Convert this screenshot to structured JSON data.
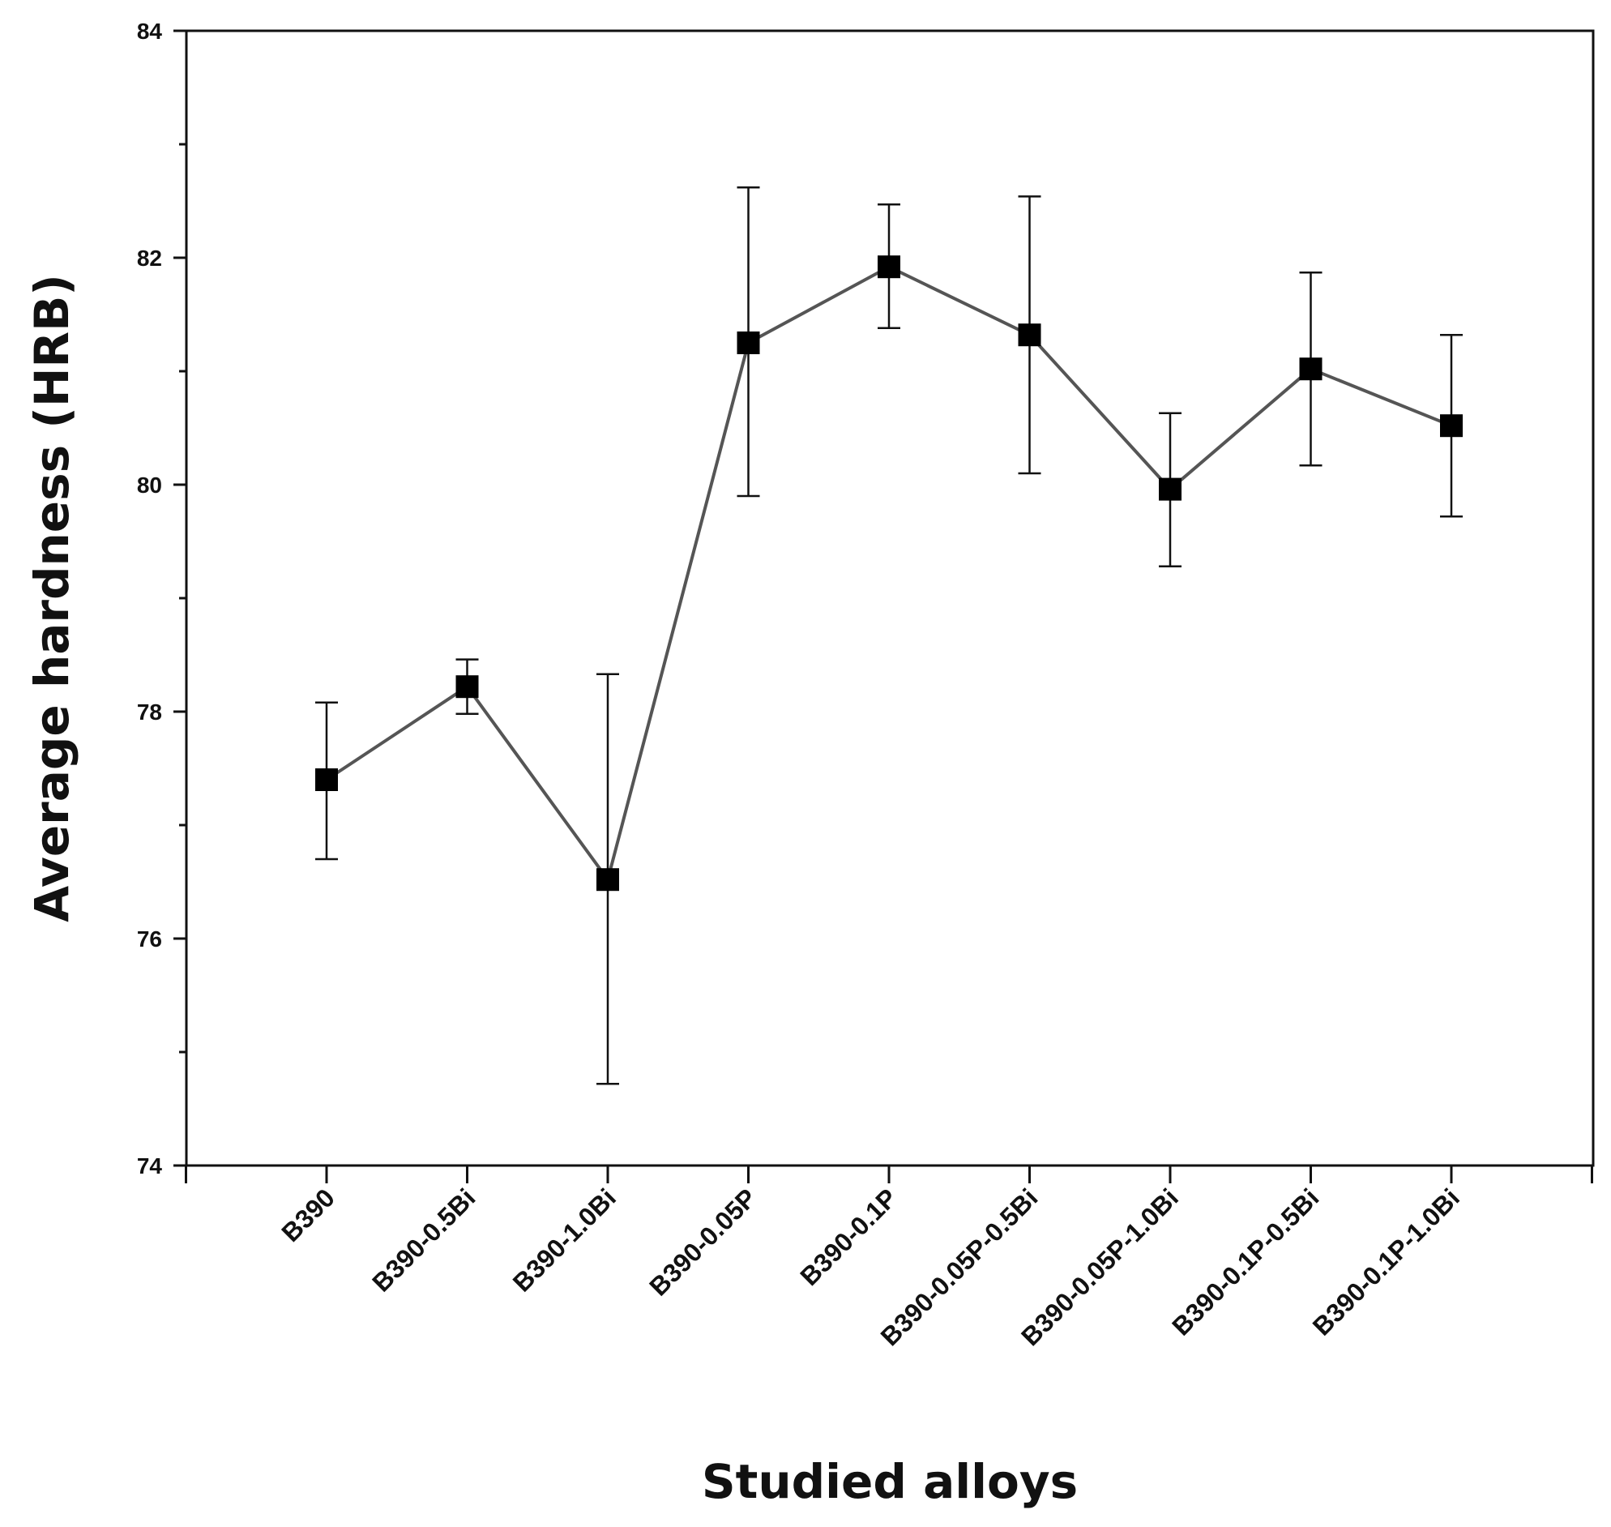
{
  "chart_data": {
    "type": "line",
    "title": "",
    "xlabel": "Studied alloys",
    "ylabel": "Average hardness  (HRB)",
    "ylim": [
      74,
      84
    ],
    "yticks": [
      74,
      76,
      78,
      80,
      82,
      84
    ],
    "grid": false,
    "categories": [
      "B390",
      "B390-0.5Bi",
      "B390-1.0Bi",
      "B390-0.05P",
      "B390-0.1P",
      "B390-0.05P-0.5Bi",
      "B390-0.05P-1.0Bi",
      "B390-0.1P-0.5Bi",
      "B390-0.1P-1.0Bi"
    ],
    "series": [
      {
        "name": "Average hardness",
        "values": [
          77.4,
          78.22,
          76.52,
          81.25,
          81.92,
          81.32,
          79.96,
          81.02,
          80.52
        ],
        "error_low": [
          76.7,
          77.98,
          74.72,
          79.9,
          81.38,
          80.1,
          79.28,
          80.17,
          79.72
        ],
        "error_high": [
          78.08,
          78.46,
          78.33,
          82.62,
          82.47,
          82.54,
          80.63,
          81.87,
          81.32
        ],
        "line_color": "#555555",
        "marker_color": "#000000"
      }
    ]
  }
}
